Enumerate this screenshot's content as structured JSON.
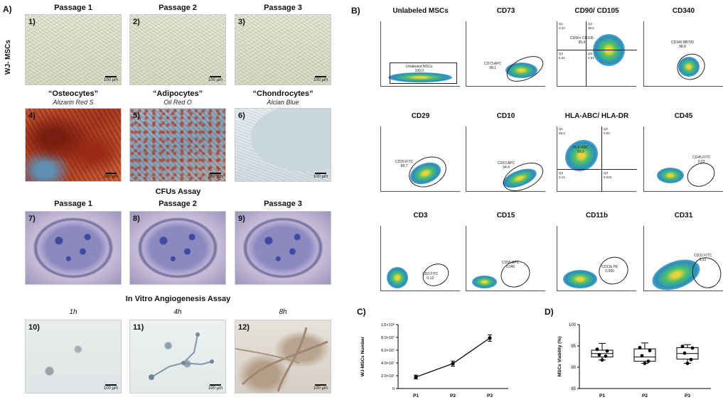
{
  "panel_A": {
    "letter": "A)",
    "row_label": "WJ- MSCs",
    "passage_headers": [
      "Passage 1",
      "Passage 2",
      "Passage 3"
    ],
    "differentiation": [
      {
        "title": "“Osteocytes”",
        "stain": "Alizarin Red S"
      },
      {
        "title": "“Adipocytes”",
        "stain": "Oil Red O"
      },
      {
        "title": "“Chondrocytes”",
        "stain": "Alcian Blue"
      }
    ],
    "cfu_title": "CFUs Assay",
    "cfu_headers": [
      "Passage 1",
      "Passage 2",
      "Passage 3"
    ],
    "angio_title": "In Vitro Angiogenesis Assay",
    "angio_times": [
      "1h",
      "4h",
      "8h"
    ],
    "image_numbers": [
      "1)",
      "2)",
      "3)",
      "4)",
      "5)",
      "6)",
      "7)",
      "8)",
      "9)",
      "10)",
      "11)",
      "12)"
    ],
    "scale_label": "100 µm"
  },
  "panel_B": {
    "letter": "B)",
    "plots": [
      {
        "title": "Unlabeled MSCs",
        "gate": "Unlabeled MSCs",
        "value": "100,0"
      },
      {
        "title": "CD73",
        "gate": "CD73 APC",
        "value": "99,1"
      },
      {
        "title": "CD90/ CD105",
        "gate": "CD90+ CD105",
        "value": "95,4",
        "quadrants": [
          "Q1",
          "0,22",
          "Q2",
          "98,5",
          "Q4",
          "0,22",
          "Q3",
          "2,94"
        ]
      },
      {
        "title": "CD340",
        "gate": "CD340 BB700",
        "value": "98,8"
      },
      {
        "title": "CD29",
        "gate": "CD29 FITC",
        "value": "89,7"
      },
      {
        "title": "CD10",
        "gate": "CD10 APC",
        "value": "94,4"
      },
      {
        "title": "HLA-ABC/ HLA-DR",
        "gate": "HLA-ABC",
        "value": "93,9",
        "quadrants": [
          "Q1",
          "96,2",
          "Q2",
          "0,63",
          "Q4",
          "3,12",
          "Q3",
          "0,023"
        ]
      },
      {
        "title": "CD45",
        "gate": "CD45 FITC",
        "value": "0,23"
      },
      {
        "title": "CD3",
        "gate": "CD3 FITC",
        "value": "0,12"
      },
      {
        "title": "CD15",
        "gate": "CD15 APC",
        "value": "0,040"
      },
      {
        "title": "CD11b",
        "gate": "CD11b PE",
        "value": "0,060"
      },
      {
        "title": "CD31",
        "gate": "CD31 FITC",
        "value": "1,31"
      }
    ]
  },
  "chart_data": [
    {
      "panel": "C)",
      "type": "line",
      "title": "",
      "xlabel": "",
      "ylabel": "WJ-MSCs Number",
      "categories": [
        "P1",
        "P2",
        "P3"
      ],
      "values": [
        18000000,
        39000000,
        79000000
      ],
      "errors": [
        3000000,
        4000000,
        5000000
      ],
      "ylim": [
        0,
        100000000
      ],
      "yticks": [
        0,
        20000000,
        40000000,
        60000000,
        80000000,
        100000000
      ],
      "ytick_labels": [
        "0",
        "2.0×10⁷",
        "4.0×10⁷",
        "6.0×10⁷",
        "8.0×10⁷",
        "1.0×10⁸"
      ]
    },
    {
      "panel": "D)",
      "type": "box",
      "title": "",
      "xlabel": "",
      "ylabel": "MSCs Viability (%)",
      "categories": [
        "P1",
        "P2",
        "P3"
      ],
      "series": [
        {
          "name": "P1",
          "points": [
            94.2,
            93.8,
            92.9,
            92.6,
            91.7
          ],
          "median": 93.2,
          "q1": 92.4,
          "q3": 94.0,
          "min": 91.7,
          "max": 95.6
        },
        {
          "name": "P2",
          "points": [
            94.6,
            93.9,
            92.7,
            91.4,
            90.9
          ],
          "median": 92.4,
          "q1": 91.4,
          "q3": 94.3,
          "min": 90.9,
          "max": 95.7
        },
        {
          "name": "P3",
          "points": [
            94.9,
            94.5,
            93.3,
            91.8,
            90.9
          ],
          "median": 93.2,
          "q1": 91.9,
          "q3": 94.6,
          "min": 90.9,
          "max": 95.3
        }
      ],
      "ylim": [
        85,
        100
      ],
      "yticks": [
        85,
        90,
        95,
        100
      ]
    }
  ]
}
